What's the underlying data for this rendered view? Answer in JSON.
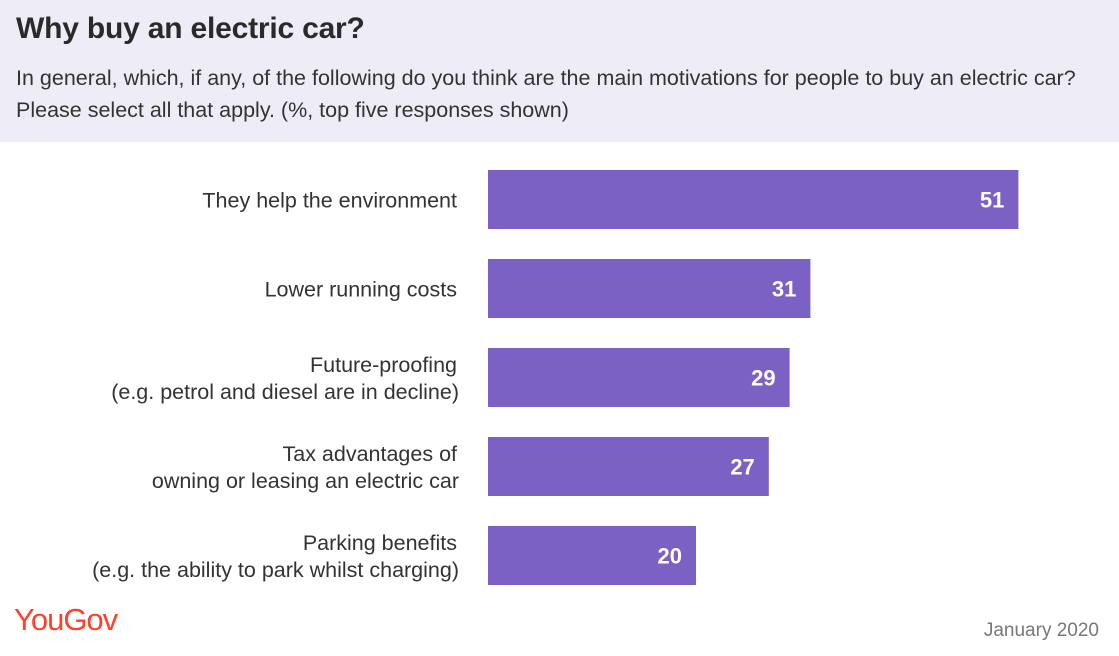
{
  "header": {
    "title": "Why buy an electric car?",
    "subtitle": "In general, which, if any, of the following do you think are the main motivations for people to buy an electric car? Please select all that apply. (%, top five responses shown)"
  },
  "footer": {
    "logo": "YouGov",
    "date": "January 2020"
  },
  "colors": {
    "bar": "#7b61c4",
    "header_bg": "#eeecf6",
    "logo": "#ff412c"
  },
  "chart_data": {
    "type": "bar",
    "orientation": "horizontal",
    "categories": [
      [
        "They help the environment"
      ],
      [
        "Lower running costs"
      ],
      [
        "Future-proofing",
        "(e.g. petrol and diesel are in decline)"
      ],
      [
        "Tax advantages of",
        "owning or leasing an electric car"
      ],
      [
        "Parking benefits",
        "(e.g. the ability to park whilst charging)"
      ]
    ],
    "values": [
      51,
      31,
      29,
      27,
      20
    ],
    "xlim": [
      0,
      60
    ],
    "title": "Why buy an electric car?",
    "xlabel": "",
    "ylabel": "",
    "grid": false,
    "legend": "none",
    "data_labels": "inside-end"
  }
}
